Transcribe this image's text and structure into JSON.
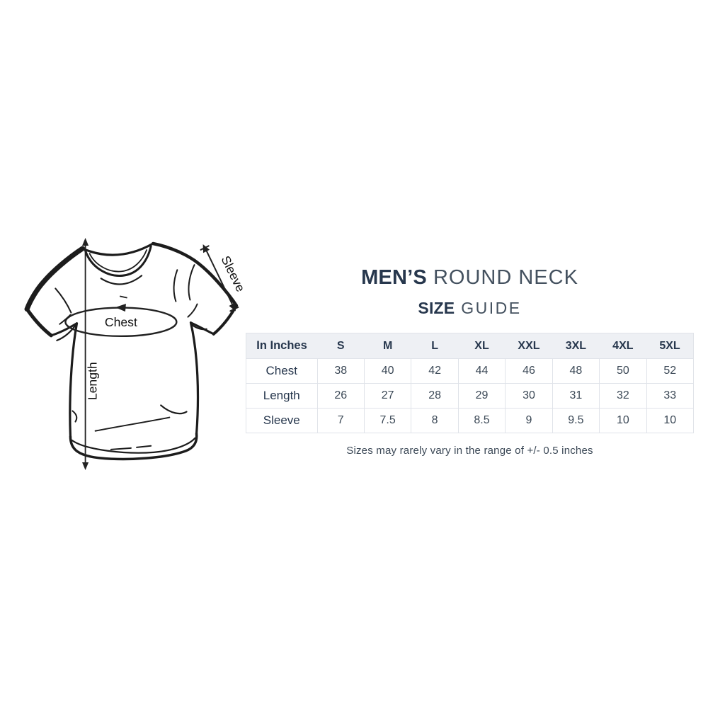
{
  "title": {
    "emphasis": "MEN’S",
    "rest": "ROUND NECK"
  },
  "subtitle": {
    "emphasis": "SIZE",
    "rest": "GUIDE"
  },
  "diagram": {
    "chest_label": "Chest",
    "length_label": "Length",
    "sleeve_label": "Sleeve"
  },
  "size_table": {
    "unit_header": "In Inches",
    "sizes": [
      "S",
      "M",
      "L",
      "XL",
      "XXL",
      "3XL",
      "4XL",
      "5XL"
    ],
    "rows": [
      {
        "label": "Chest",
        "values": [
          "38",
          "40",
          "42",
          "44",
          "46",
          "48",
          "50",
          "52"
        ]
      },
      {
        "label": "Length",
        "values": [
          "26",
          "27",
          "28",
          "29",
          "30",
          "31",
          "32",
          "33"
        ]
      },
      {
        "label": "Sleeve",
        "values": [
          "7",
          "7.5",
          "8",
          "8.5",
          "9",
          "9.5",
          "10",
          "10"
        ]
      }
    ]
  },
  "note": "Sizes may rarely vary in the range of +/- 0.5 inches",
  "colors": {
    "heading_bold": "#27374d",
    "heading_light": "#44515f",
    "table_header_bg": "#eef0f4",
    "table_border": "#e0e3e9",
    "cell_text": "#3b4856",
    "ink": "#1b1b1b"
  }
}
